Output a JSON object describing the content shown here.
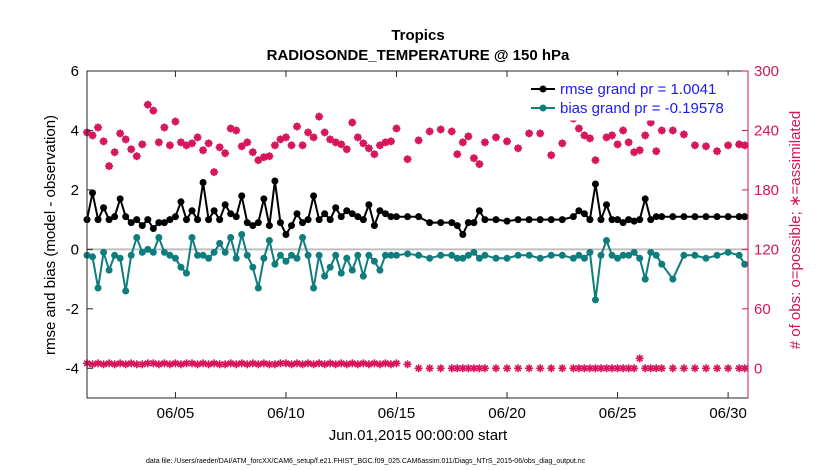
{
  "chart_data": {
    "type": "line",
    "title": "Tropics",
    "subtitle": "RADIOSONDE_TEMPERATURE @ 150 hPa",
    "xlabel": "Jun.01,2015 00:00:00 start",
    "ylabel": "rmse and bias (model - observation)",
    "ylabel_right": "# of obs: o=possible; ∗=assimilated",
    "xlim": [
      1,
      30.9
    ],
    "ylim": [
      -5,
      6
    ],
    "ylim_right": [
      -30,
      300
    ],
    "x_ticks": [
      5,
      10,
      15,
      20,
      25,
      30
    ],
    "x_tick_labels": [
      "06/05",
      "06/10",
      "06/15",
      "06/20",
      "06/25",
      "06/30"
    ],
    "y_ticks": [
      -4,
      -2,
      0,
      2,
      4,
      6
    ],
    "y_tick_labels": [
      "-4",
      "-2",
      "0",
      "2",
      "4",
      "6"
    ],
    "y_ticks_right": [
      0,
      60,
      120,
      180,
      240,
      300
    ],
    "y_tick_labels_right": [
      "0",
      "60",
      "120",
      "180",
      "240",
      "300"
    ],
    "legend": [
      "rmse grand pr = 1.0041",
      "bias grand pr = -0.19578"
    ],
    "footnote": "data file: /Users/raeder/DAI/ATM_forcXX/CAM6_setup/f.e21.FHIST_BGC.f09_025.CAM6assim.011/Diags_NTrS_2015-06/obs_diag_output.nc",
    "colors": {
      "rmse": "#000000",
      "bias": "#0f7d7d",
      "obs": "#d6135b",
      "zero_line": "#bfbfbf",
      "legend_text": "#1a1aff"
    },
    "x": [
      1.0,
      1.25,
      1.5,
      1.75,
      2.0,
      2.25,
      2.5,
      2.75,
      3.0,
      3.25,
      3.5,
      3.75,
      4.0,
      4.25,
      4.5,
      4.75,
      5.0,
      5.25,
      5.5,
      5.75,
      6.0,
      6.25,
      6.5,
      6.75,
      7.0,
      7.25,
      7.5,
      7.75,
      8.0,
      8.25,
      8.5,
      8.75,
      9.0,
      9.25,
      9.5,
      9.75,
      10.0,
      10.25,
      10.5,
      10.75,
      11.0,
      11.25,
      11.5,
      11.75,
      12.0,
      12.25,
      12.5,
      12.75,
      13.0,
      13.25,
      13.5,
      13.75,
      14.0,
      14.25,
      14.5,
      14.75,
      15.0,
      15.5,
      16.0,
      16.5,
      17.0,
      17.5,
      17.75,
      18.0,
      18.25,
      18.5,
      18.75,
      19.0,
      19.5,
      20.0,
      20.5,
      21.0,
      21.5,
      22.0,
      22.5,
      23.0,
      23.25,
      23.5,
      23.75,
      24.0,
      24.25,
      24.5,
      24.75,
      25.0,
      25.25,
      25.5,
      25.75,
      26.0,
      26.25,
      26.5,
      26.75,
      27.0,
      27.5,
      28.0,
      28.5,
      29.0,
      29.5,
      30.0,
      30.5,
      30.75
    ],
    "series": [
      {
        "name": "rmse",
        "values": [
          1.0,
          1.9,
          1.0,
          1.4,
          1.0,
          1.1,
          1.7,
          1.1,
          0.9,
          1.0,
          0.8,
          1.0,
          0.7,
          0.9,
          0.9,
          1.0,
          1.1,
          1.6,
          1.0,
          1.3,
          1.0,
          2.25,
          1.0,
          1.3,
          1.0,
          1.5,
          1.2,
          1.1,
          1.8,
          0.9,
          0.8,
          0.9,
          1.7,
          0.8,
          2.3,
          0.9,
          0.5,
          0.8,
          1.2,
          0.9,
          1.0,
          1.8,
          1.0,
          1.2,
          1.0,
          1.4,
          1.1,
          1.3,
          1.2,
          1.1,
          1.0,
          1.5,
          0.8,
          1.3,
          1.2,
          1.1,
          1.1,
          1.1,
          1.1,
          0.9,
          0.9,
          0.9,
          0.8,
          0.5,
          0.9,
          0.9,
          1.3,
          1.0,
          1.0,
          0.95,
          1.0,
          1.0,
          1.0,
          1.0,
          1.0,
          1.1,
          1.3,
          1.2,
          1.0,
          2.2,
          1.0,
          1.5,
          1.0,
          1.0,
          0.9,
          1.0,
          0.95,
          1.0,
          1.7,
          1.0,
          1.1,
          1.1,
          1.1,
          1.1,
          1.1,
          1.1,
          1.1,
          1.1,
          1.1,
          1.1
        ]
      },
      {
        "name": "bias",
        "values": [
          -0.2,
          -0.25,
          -1.3,
          -0.1,
          -0.7,
          -0.2,
          -0.3,
          -1.4,
          -0.2,
          0.4,
          -0.1,
          0.0,
          -0.1,
          0.4,
          -0.1,
          -0.2,
          -0.3,
          -0.6,
          -0.8,
          0.4,
          -0.2,
          -0.2,
          -0.3,
          -0.1,
          0.2,
          -0.1,
          0.4,
          -0.3,
          0.5,
          -0.2,
          -0.6,
          -1.3,
          -0.3,
          0.3,
          -0.5,
          -0.2,
          -0.4,
          -0.2,
          -0.3,
          0.4,
          -0.2,
          -1.3,
          -0.2,
          -0.9,
          -0.6,
          -0.2,
          -0.8,
          -0.3,
          -0.7,
          -0.2,
          -0.9,
          -0.2,
          -0.4,
          -0.7,
          -0.2,
          -0.2,
          -0.2,
          -0.15,
          -0.2,
          -0.3,
          -0.2,
          -0.2,
          -0.3,
          -0.3,
          -0.2,
          -0.1,
          -0.3,
          -0.2,
          -0.3,
          -0.3,
          -0.2,
          -0.2,
          -0.3,
          -0.2,
          -0.2,
          -0.3,
          -0.2,
          -0.3,
          -0.1,
          -1.7,
          -0.2,
          0.3,
          -0.2,
          -0.3,
          -0.2,
          -0.2,
          -0.1,
          -0.3,
          -1.0,
          -0.1,
          -0.2,
          -0.5,
          -1.0,
          -0.2,
          -0.2,
          -0.3,
          -0.2,
          -0.1,
          -0.2,
          -0.5
        ]
      },
      {
        "name": "obs_possible",
        "values": [
          238,
          235,
          243,
          229,
          204,
          218,
          237,
          231,
          221,
          214,
          226,
          266,
          260,
          228,
          243,
          225,
          249,
          228,
          225,
          227,
          233,
          220,
          227,
          198,
          223,
          217,
          242,
          240,
          224,
          228,
          218,
          210,
          213,
          214,
          225,
          231,
          233,
          225,
          244,
          225,
          238,
          233,
          254,
          238,
          231,
          228,
          226,
          221,
          248,
          233,
          227,
          222,
          216,
          225,
          228,
          229,
          242,
          211,
          230,
          239,
          241,
          239,
          216,
          228,
          234,
          212,
          206,
          228,
          233,
          229,
          222,
          237,
          237,
          215,
          227,
          252,
          242,
          235,
          232,
          210,
          256,
          233,
          235,
          226,
          240,
          228,
          218,
          220,
          235,
          248,
          219,
          240,
          240,
          236,
          225,
          224,
          219,
          225,
          226,
          225
        ]
      },
      {
        "name": "obs_assimilated",
        "values": [
          5,
          4,
          5,
          4,
          5,
          4,
          5,
          4,
          5,
          4,
          4,
          5,
          5,
          4,
          5,
          4,
          5,
          4,
          5,
          5,
          4,
          5,
          4,
          5,
          4,
          4,
          5,
          4,
          5,
          4,
          5,
          4,
          5,
          4,
          4,
          5,
          5,
          4,
          5,
          4,
          5,
          4,
          5,
          4,
          5,
          4,
          5,
          4,
          5,
          4,
          5,
          4,
          5,
          4,
          5,
          4,
          5,
          4,
          0,
          0,
          0,
          0,
          0,
          0,
          0,
          0,
          0,
          0,
          0,
          0,
          0,
          0,
          0,
          0,
          0,
          0,
          0,
          0,
          0,
          0,
          0,
          0,
          0,
          0,
          0,
          0,
          0,
          10,
          0,
          0,
          0,
          0,
          0,
          0,
          0,
          0,
          0,
          0,
          0,
          0
        ]
      }
    ]
  }
}
